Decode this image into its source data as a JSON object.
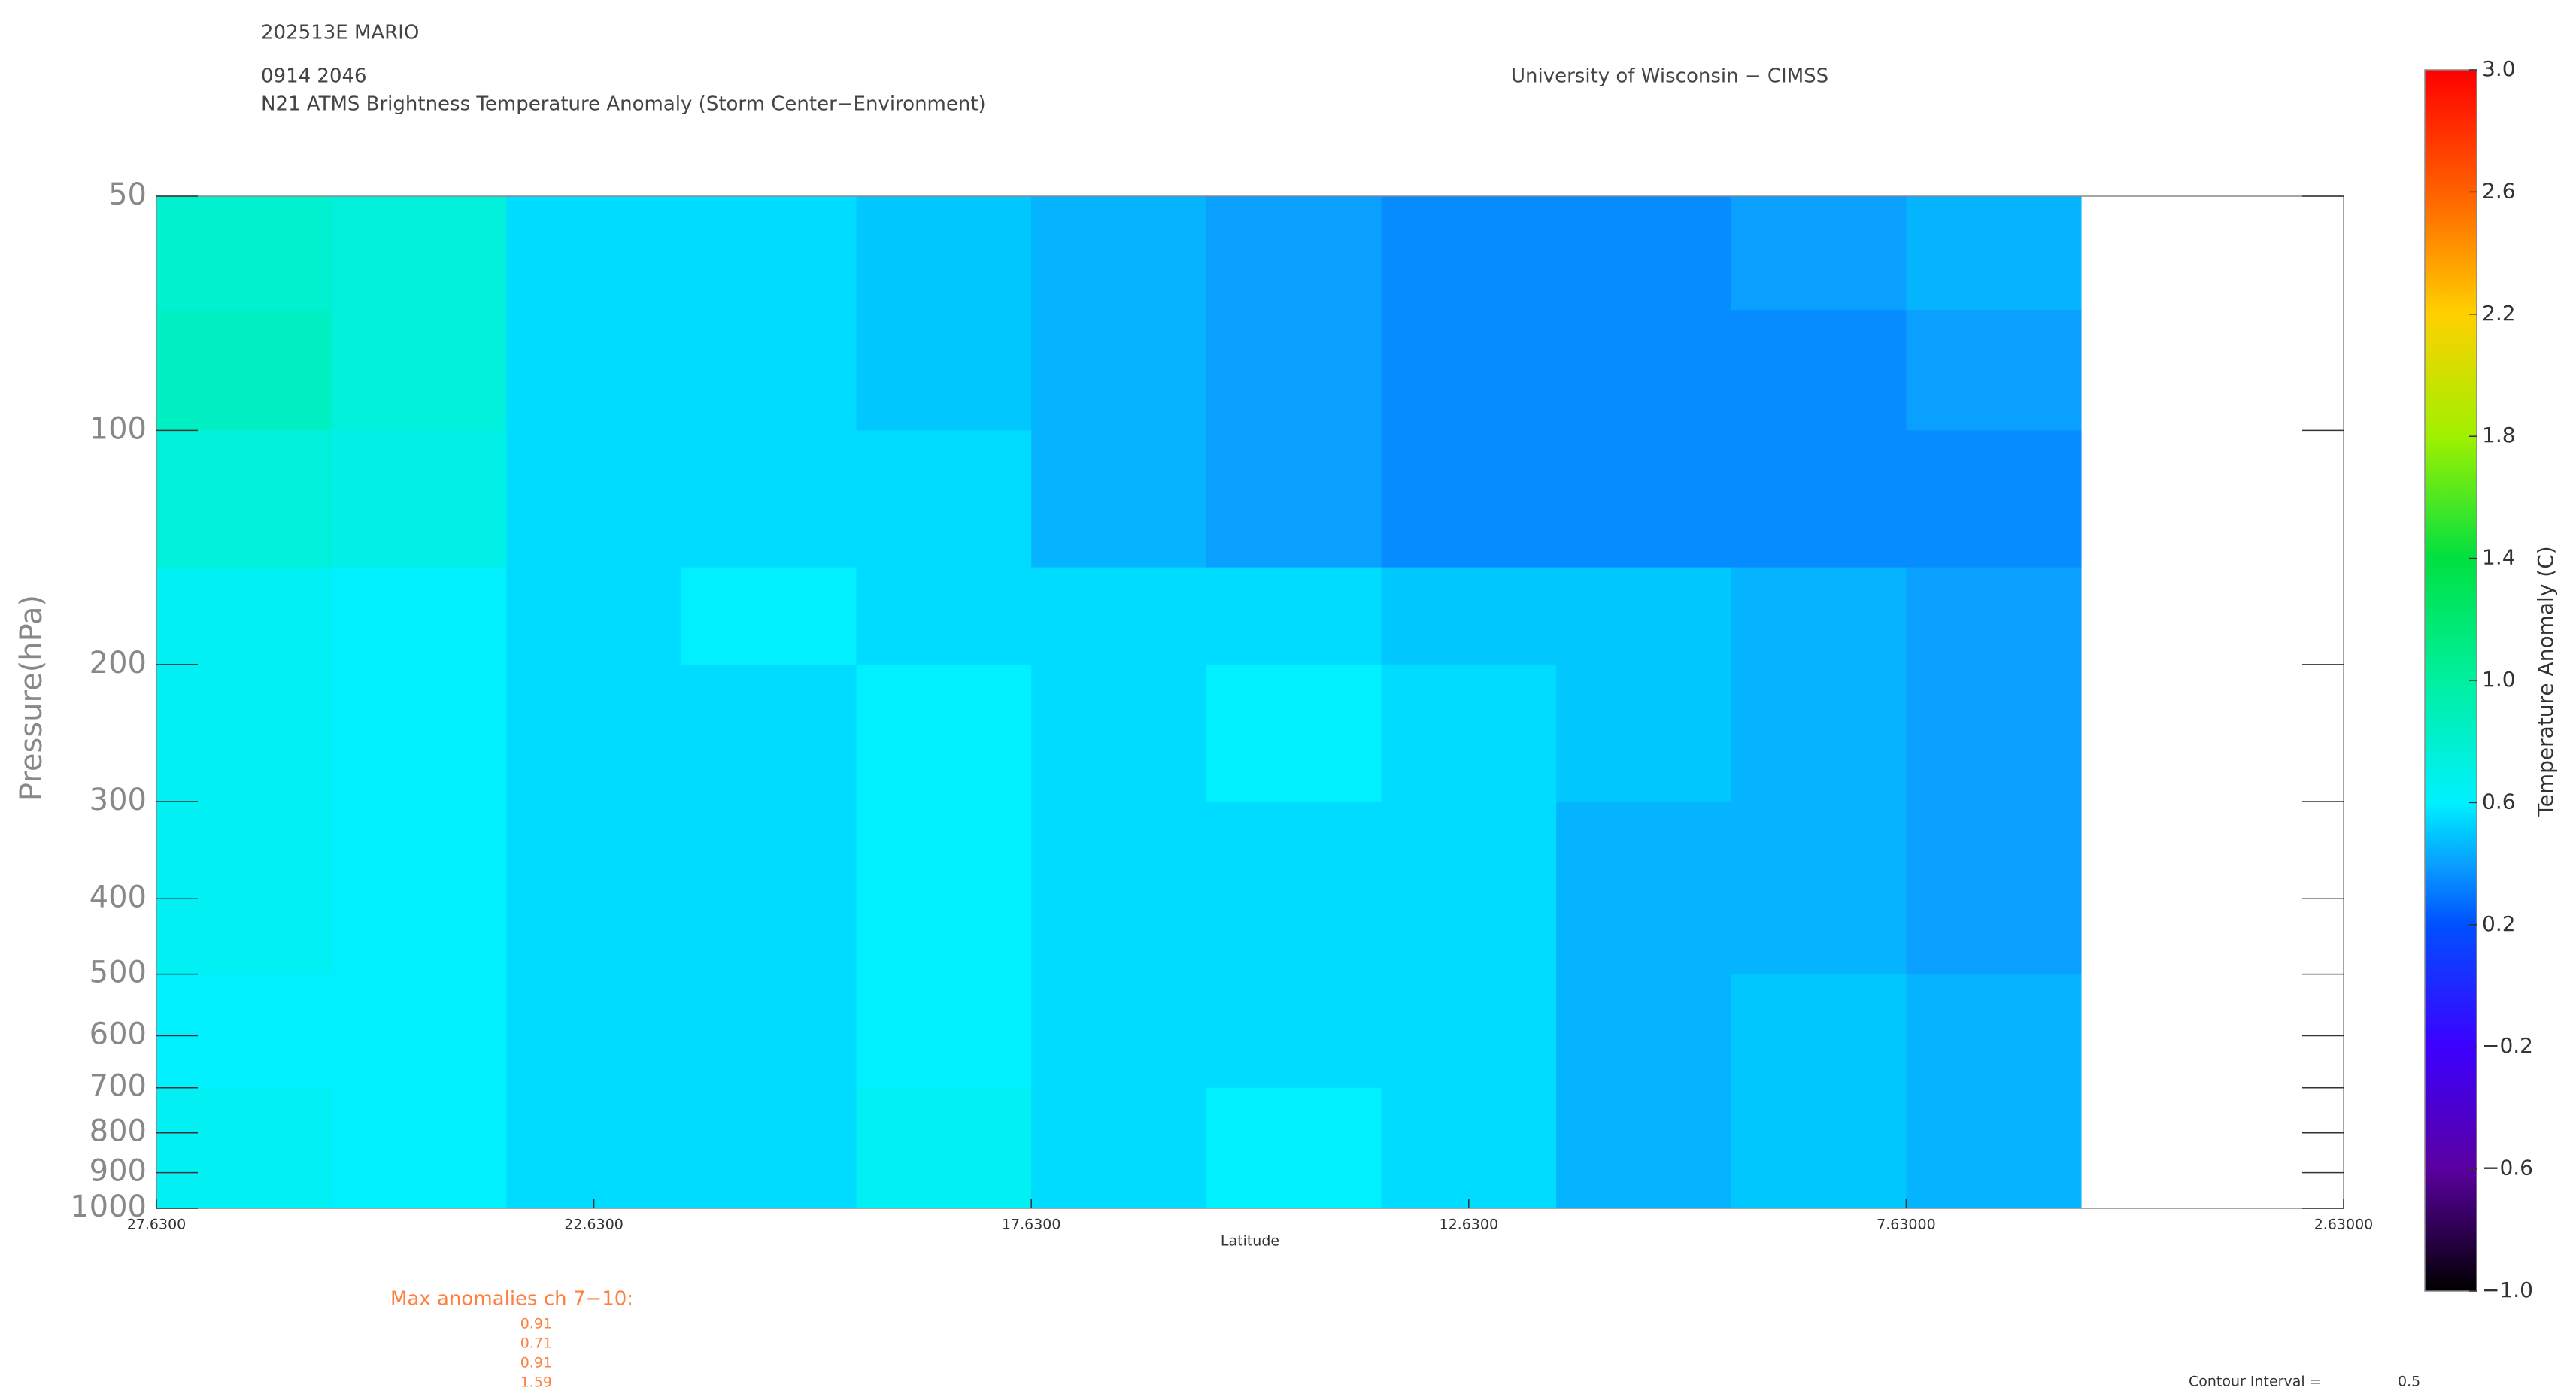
{
  "chart_data": {
    "type": "contour",
    "title": "202513E MARIO",
    "subtitle": "0914 2046",
    "description": "N21 ATMS Brightness Temperature Anomaly (Storm Center−Environment)",
    "source": "University of Wisconsin − CIMSS",
    "x_label": "Latitude",
    "y_label": "Pressure(hPa)",
    "colorbar_label": "Temperature Anomaly (C)",
    "xlim": [
      27.63,
      2.63
    ],
    "xticks": [
      {
        "value": 27.63,
        "label": "27.6300"
      },
      {
        "value": 22.63,
        "label": "22.6300"
      },
      {
        "value": 17.63,
        "label": "17.6300"
      },
      {
        "value": 12.63,
        "label": "12.6300"
      },
      {
        "value": 7.63,
        "label": "7.63000"
      },
      {
        "value": 2.63,
        "label": "2.63000"
      }
    ],
    "ylim": [
      50,
      1000
    ],
    "y_log": true,
    "yticks": [
      50,
      100,
      200,
      300,
      400,
      500,
      600,
      700,
      800,
      900,
      1000
    ],
    "x_edges": [
      27.63,
      25.63,
      23.63,
      21.63,
      19.63,
      17.63,
      15.63,
      13.63,
      11.63,
      9.63,
      7.63,
      5.63
    ],
    "y_edges": [
      50,
      70,
      100,
      150,
      200,
      300,
      500,
      700,
      1000
    ],
    "z": [
      [
        0.8,
        0.75,
        0.55,
        0.55,
        0.5,
        0.45,
        0.4,
        0.35,
        0.35,
        0.4,
        0.45
      ],
      [
        0.85,
        0.75,
        0.55,
        0.55,
        0.5,
        0.45,
        0.4,
        0.35,
        0.35,
        0.35,
        0.4
      ],
      [
        0.75,
        0.7,
        0.55,
        0.55,
        0.55,
        0.45,
        0.4,
        0.35,
        0.35,
        0.35,
        0.35
      ],
      [
        0.65,
        0.6,
        0.55,
        0.6,
        0.55,
        0.55,
        0.55,
        0.5,
        0.5,
        0.45,
        0.4
      ],
      [
        0.65,
        0.6,
        0.55,
        0.55,
        0.6,
        0.55,
        0.6,
        0.55,
        0.5,
        0.45,
        0.4
      ],
      [
        0.65,
        0.6,
        0.55,
        0.55,
        0.6,
        0.55,
        0.55,
        0.55,
        0.45,
        0.45,
        0.4
      ],
      [
        0.6,
        0.6,
        0.55,
        0.55,
        0.6,
        0.55,
        0.55,
        0.55,
        0.45,
        0.5,
        0.45
      ],
      [
        0.65,
        0.6,
        0.55,
        0.55,
        0.65,
        0.55,
        0.6,
        0.55,
        0.45,
        0.5,
        0.45
      ]
    ],
    "clim": [
      -1,
      3
    ],
    "colorscale": [
      [
        -1,
        "#000000"
      ],
      [
        -0.6,
        "#5a00a0"
      ],
      [
        -0.2,
        "#3c00ff"
      ],
      [
        0.2,
        "#0050ff"
      ],
      [
        0.4,
        "#0aa0ff"
      ],
      [
        0.5,
        "#00c8ff"
      ],
      [
        0.6,
        "#00f0ff"
      ],
      [
        1.0,
        "#00f0a0"
      ],
      [
        1.4,
        "#00e040"
      ],
      [
        1.8,
        "#a0f000"
      ],
      [
        2.2,
        "#ffd000"
      ],
      [
        2.6,
        "#ff6000"
      ],
      [
        3.0,
        "#ff0000"
      ]
    ],
    "cticks": [
      {
        "value": 3.0,
        "label": "3.0"
      },
      {
        "value": 2.6,
        "label": "2.6"
      },
      {
        "value": 2.2,
        "label": "2.2"
      },
      {
        "value": 1.8,
        "label": "1.8"
      },
      {
        "value": 1.4,
        "label": "1.4"
      },
      {
        "value": 1.0,
        "label": "1.0"
      },
      {
        "value": 0.6,
        "label": "0.6"
      },
      {
        "value": 0.2,
        "label": "0.2"
      },
      {
        "value": -0.2,
        "label": "−0.2"
      },
      {
        "value": -0.6,
        "label": "−0.6"
      },
      {
        "value": -1.0,
        "label": "−1.0"
      }
    ],
    "max_anomalies_label": "Max anomalies ch 7−10:",
    "max_anomalies": [
      0.91,
      0.71,
      0.91,
      1.59
    ],
    "contour_interval_label": "Contour Interval =",
    "contour_interval": 0.5
  }
}
